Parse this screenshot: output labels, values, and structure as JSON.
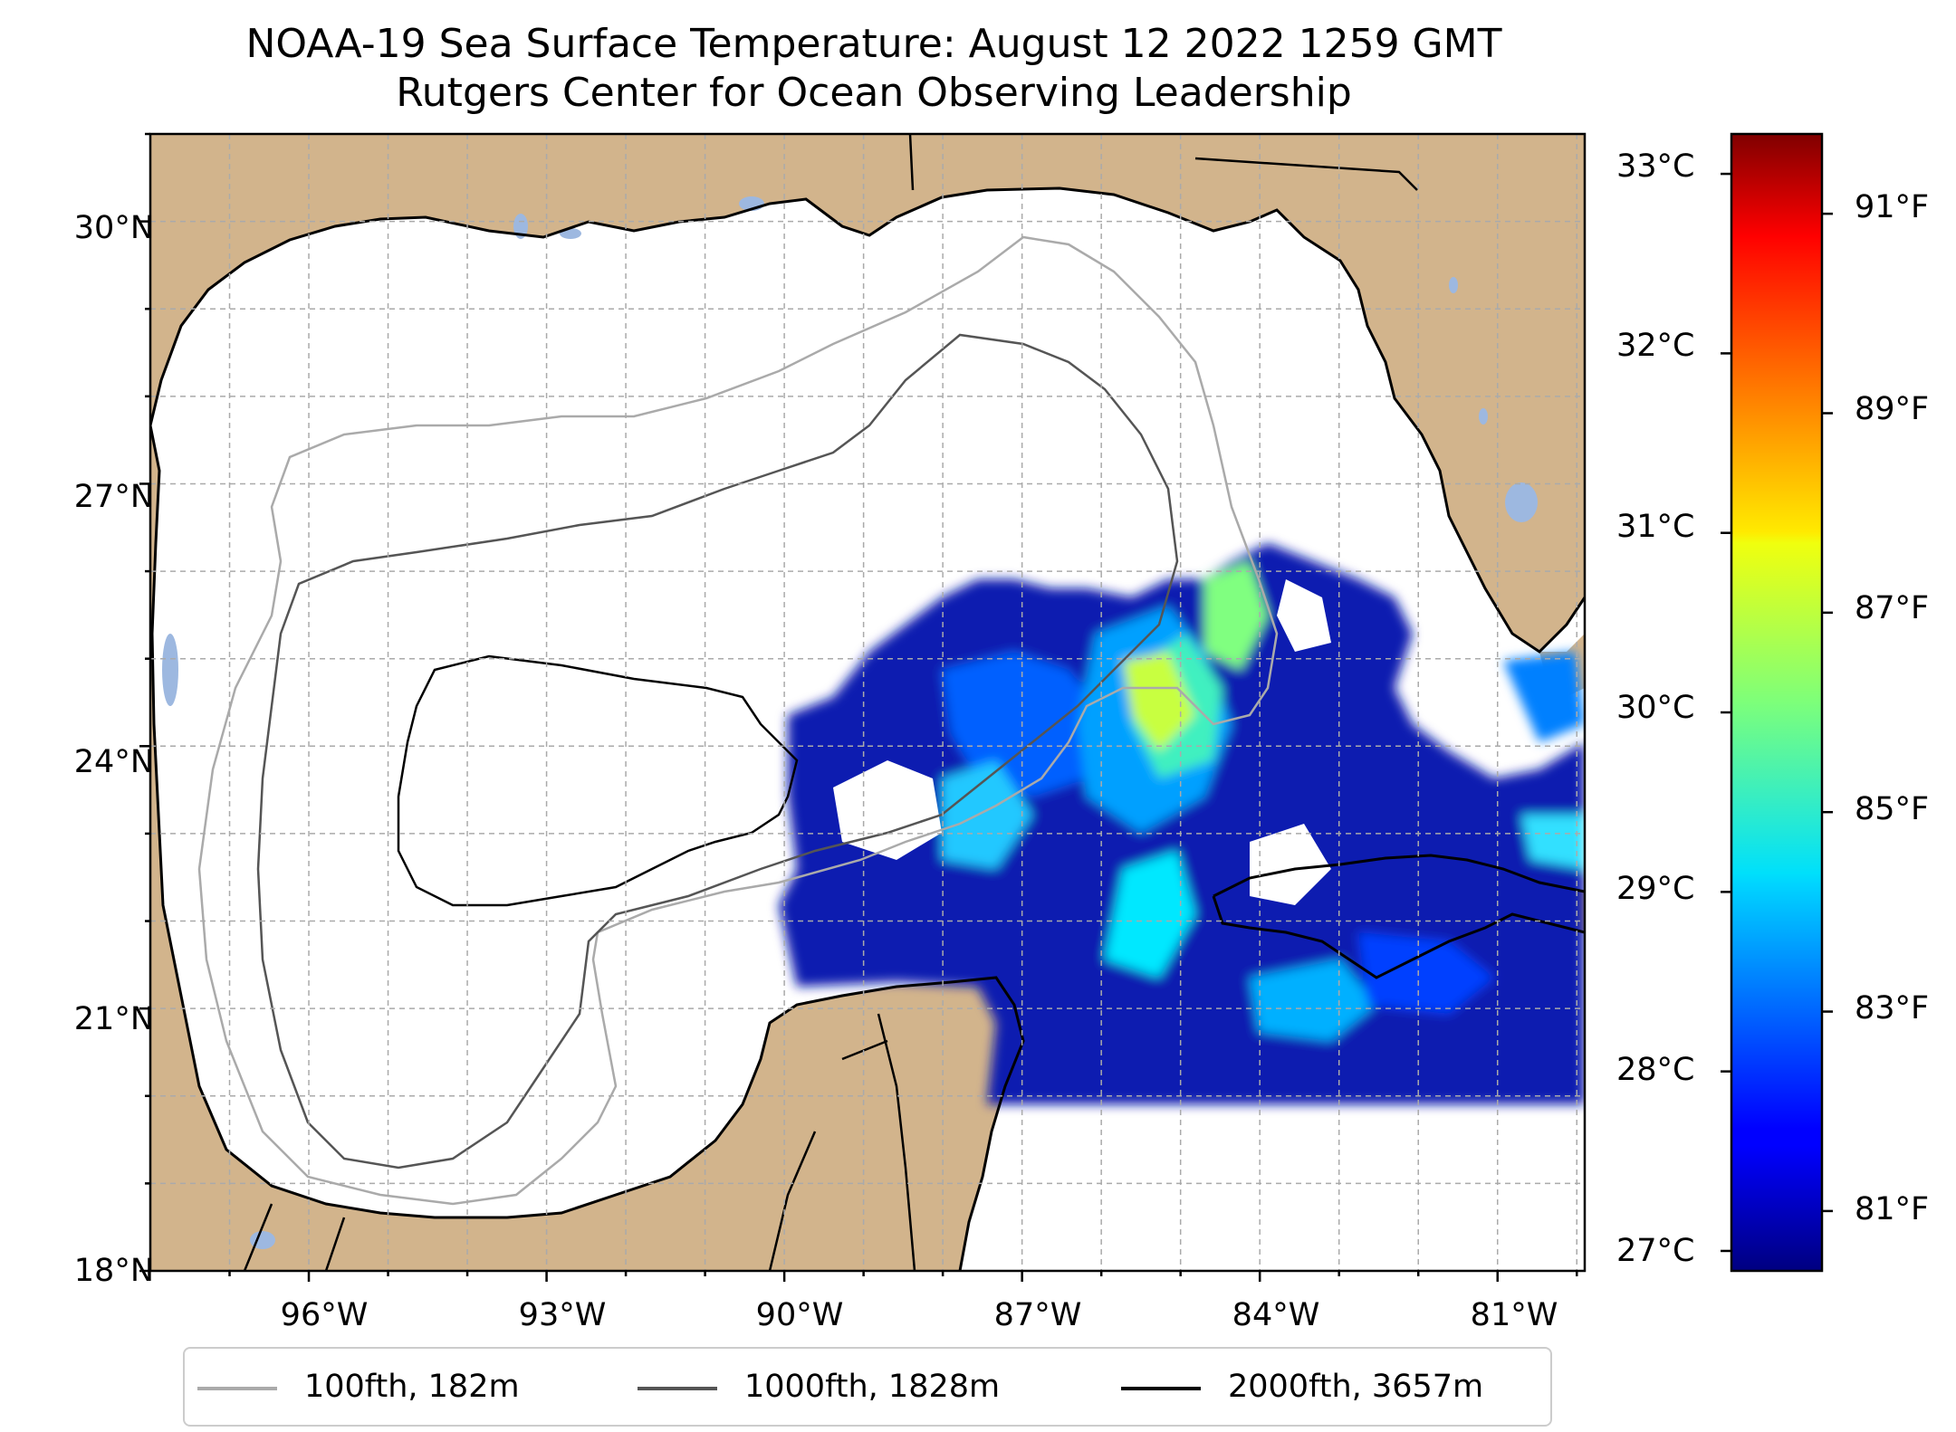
{
  "title": {
    "line1": "NOAA-19 Sea Surface Temperature: August 12 2022 1259 GMT",
    "line2": "Rutgers Center for Ocean Observing Leadership"
  },
  "map": {
    "extent": {
      "lon": [
        -98.0,
        -79.9
      ],
      "lat": [
        18.0,
        31.0
      ]
    },
    "land_color": "#d2b48c",
    "water_color": "#ffffff",
    "lake_color": "#9db8e0",
    "sst_coverage_south": 20.0,
    "grid_lines": "dashed"
  },
  "axes": {
    "lat_ticks": [
      "30°N",
      "27°N",
      "24°N",
      "21°N",
      "18°N"
    ],
    "lon_ticks": [
      "96°W",
      "93°W",
      "90°W",
      "87°W",
      "84°W",
      "81°W"
    ]
  },
  "colorbar": {
    "colormap": "jet",
    "celsius_ticks": [
      "33°C",
      "32°C",
      "31°C",
      "30°C",
      "29°C",
      "28°C",
      "27°C"
    ],
    "fahrenheit_ticks": [
      "91°F",
      "89°F",
      "87°F",
      "85°F",
      "83°F",
      "81°F"
    ],
    "f_range": [
      80.4,
      91.8
    ]
  },
  "legend": [
    {
      "label": "100fth, 182m",
      "color": "#aaaaaa"
    },
    {
      "label": "1000fth, 1828m",
      "color": "#555555"
    },
    {
      "label": "2000fth, 3657m",
      "color": "#000000"
    }
  ]
}
